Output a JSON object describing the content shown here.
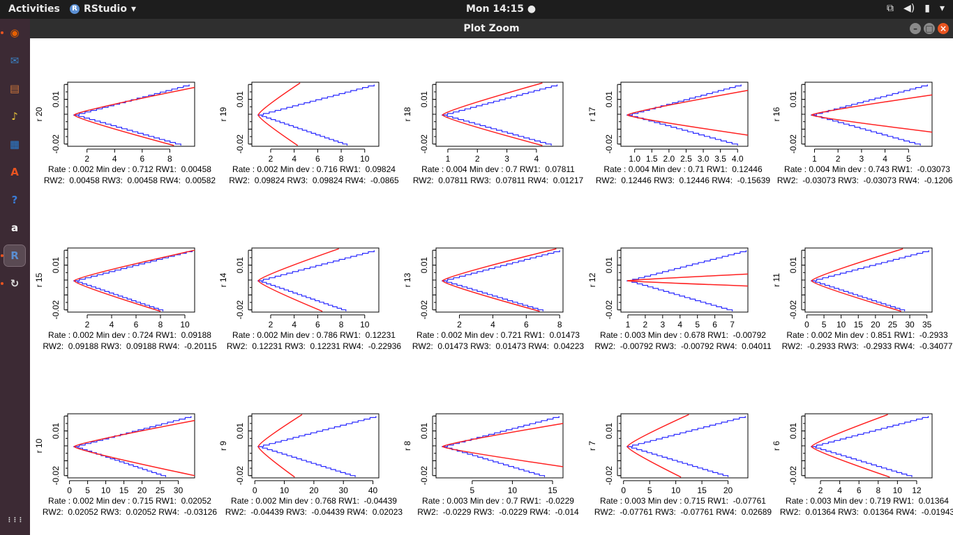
{
  "topbar": {
    "activities": "Activities",
    "app_name": "RStudio",
    "app_icon_letter": "R",
    "clock": "Mon 14:15"
  },
  "window": {
    "title": "Plot Zoom"
  },
  "dock": {
    "items": [
      {
        "name": "firefox",
        "icon": "firefox-icon",
        "glyph": "◉",
        "color": "#e66000"
      },
      {
        "name": "thunderbird",
        "icon": "mail-icon",
        "glyph": "✉",
        "color": "#3b82c4"
      },
      {
        "name": "files",
        "icon": "files-icon",
        "glyph": "▤",
        "color": "#c9743a"
      },
      {
        "name": "rhythmbox",
        "icon": "music-icon",
        "glyph": "♪",
        "color": "#e8c43a"
      },
      {
        "name": "libreoffice-writer",
        "icon": "document-icon",
        "glyph": "▦",
        "color": "#2a7dd1"
      },
      {
        "name": "software",
        "icon": "software-bag-icon",
        "glyph": "A",
        "color": "#e95420"
      },
      {
        "name": "help",
        "icon": "help-icon",
        "glyph": "?",
        "color": "#3a7bd5"
      },
      {
        "name": "amazon",
        "icon": "amazon-icon",
        "glyph": "a",
        "color": "#ffffff"
      },
      {
        "name": "rstudio",
        "icon": "rstudio-icon",
        "glyph": "R",
        "color": "#5b8fd3"
      },
      {
        "name": "updater",
        "icon": "updates-icon",
        "glyph": "↻",
        "color": "#dddddd"
      },
      {
        "name": "show-apps",
        "icon": "grid-icon",
        "glyph": "⋮⋮⋮",
        "color": "#dddddd"
      }
    ]
  },
  "colors": {
    "observed": "#2b2bff",
    "fitted": "#ff2020"
  },
  "chart_data": [
    {
      "type": "line",
      "ylabel": "r 20",
      "xticks": [
        "2",
        "4",
        "6",
        "8"
      ],
      "xrange": [
        0.6,
        9.8
      ],
      "caption1": "Rate : 0.002 Min dev : 0.712 RW1:  0.00458",
      "caption2": "RW2:  0.00458 RW3:  0.00458 RW4:  0.00582",
      "steps": 20,
      "blue": {
        "top_end": [
          9.4,
          0.02
        ],
        "bottom_end": [
          8.8,
          -0.021
        ]
      },
      "red": {
        "top_end": [
          9.8,
          0.018
        ],
        "bottom_end": [
          8.3,
          -0.021
        ]
      }
    },
    {
      "type": "line",
      "ylabel": "r 19",
      "xticks": [
        "2",
        "4",
        "6",
        "8",
        "10"
      ],
      "xrange": [
        0.4,
        11.2
      ],
      "caption1": "Rate : 0.002 Min dev : 0.716 RW1:  0.09824",
      "caption2": "RW2:  0.09824 RW3:  0.09824 RW4:  -0.0865",
      "steps": 20,
      "blue": {
        "top_end": [
          10.8,
          0.02
        ],
        "bottom_end": [
          8.5,
          -0.021
        ]
      },
      "red": {
        "top_end": [
          4.5,
          0.021
        ],
        "bottom_end": [
          4.3,
          -0.021
        ]
      }
    },
    {
      "type": "line",
      "ylabel": "r 18",
      "xticks": [
        "1",
        "2",
        "3",
        "4"
      ],
      "xrange": [
        0.6,
        4.9
      ],
      "caption1": "Rate : 0.004 Min dev : 0.7 RW1:  0.07811",
      "caption2": "RW2:  0.07811 RW3:  0.07811 RW4:  0.01217",
      "steps": 20,
      "blue": {
        "top_end": [
          4.7,
          0.02
        ],
        "bottom_end": [
          4.5,
          -0.021
        ]
      },
      "red": {
        "top_end": [
          4.2,
          0.021
        ],
        "bottom_end": [
          4.2,
          -0.021
        ]
      }
    },
    {
      "type": "line",
      "ylabel": "r 17",
      "xticks": [
        "1.0",
        "1.5",
        "2.0",
        "2.5",
        "3.0",
        "3.5",
        "4.0"
      ],
      "xrange": [
        0.6,
        4.3
      ],
      "caption1": "Rate : 0.004 Min dev : 0.71 RW1:  0.12446",
      "caption2": "RW2:  0.12446 RW3:  0.12446 RW4:  -0.15639",
      "steps": 20,
      "blue": {
        "top_end": [
          4.1,
          0.02
        ],
        "bottom_end": [
          4.0,
          -0.021
        ]
      },
      "red": {
        "top_end": [
          4.3,
          0.016
        ],
        "bottom_end": [
          4.3,
          -0.014
        ]
      }
    },
    {
      "type": "line",
      "ylabel": "r 16",
      "xticks": [
        "1",
        "2",
        "3",
        "4",
        "5"
      ],
      "xrange": [
        0.6,
        6.0
      ],
      "caption1": "Rate : 0.004 Min dev : 0.743 RW1:  -0.03073",
      "caption2": "RW2:  -0.03073 RW3:  -0.03073 RW4:  -0.12067",
      "steps": 20,
      "blue": {
        "top_end": [
          5.8,
          0.02
        ],
        "bottom_end": [
          5.5,
          -0.021
        ]
      },
      "red": {
        "top_end": [
          6.0,
          0.013
        ],
        "bottom_end": [
          6.0,
          -0.012
        ]
      }
    },
    {
      "type": "line",
      "ylabel": "r 15",
      "xticks": [
        "2",
        "4",
        "6",
        "8",
        "10"
      ],
      "xrange": [
        0.4,
        10.8
      ],
      "caption1": "Rate : 0.002 Min dev : 0.724 RW1:  0.09188",
      "caption2": "RW2:  0.09188 RW3:  0.09188 RW4:  -0.20115",
      "steps": 20,
      "blue": {
        "top_end": [
          10.6,
          0.02
        ],
        "bottom_end": [
          8.2,
          -0.021
        ]
      },
      "red": {
        "top_end": [
          10.8,
          0.02
        ],
        "bottom_end": [
          8.0,
          -0.021
        ]
      }
    },
    {
      "type": "line",
      "ylabel": "r 14",
      "xticks": [
        "2",
        "4",
        "6",
        "8",
        "10"
      ],
      "xrange": [
        0.4,
        11.2
      ],
      "caption1": "Rate : 0.002 Min dev : 0.786 RW1:  0.12231",
      "caption2": "RW2:  0.12231 RW3:  0.12231 RW4:  -0.22936",
      "steps": 20,
      "blue": {
        "top_end": [
          10.8,
          0.02
        ],
        "bottom_end": [
          8.4,
          -0.021
        ]
      },
      "red": {
        "top_end": [
          7.8,
          0.021
        ],
        "bottom_end": [
          6.4,
          -0.021
        ]
      }
    },
    {
      "type": "line",
      "ylabel": "r 13",
      "xticks": [
        "2",
        "4",
        "6",
        "8"
      ],
      "xrange": [
        0.6,
        8.2
      ],
      "caption1": "Rate : 0.002 Min dev : 0.721 RW1:  0.01473",
      "caption2": "RW2:  0.01473 RW3:  0.01473 RW4:  0.04223",
      "steps": 20,
      "blue": {
        "top_end": [
          8.0,
          0.02
        ],
        "bottom_end": [
          7.0,
          -0.021
        ]
      },
      "red": {
        "top_end": [
          7.8,
          0.021
        ],
        "bottom_end": [
          6.8,
          -0.021
        ]
      }
    },
    {
      "type": "line",
      "ylabel": "r 12",
      "xticks": [
        "1",
        "2",
        "3",
        "4",
        "5",
        "6",
        "7"
      ],
      "xrange": [
        0.6,
        7.9
      ],
      "caption1": "Rate : 0.003 Min dev : 0.678 RW1:  -0.00792",
      "caption2": "RW2:  -0.00792 RW3:  -0.00792 RW4:  0.04011",
      "steps": 20,
      "blue": {
        "top_end": [
          7.8,
          0.02
        ],
        "bottom_end": [
          7.0,
          -0.021
        ]
      },
      "red": {
        "top_end": [
          7.9,
          0.004
        ],
        "bottom_end": [
          7.9,
          -0.004
        ]
      }
    },
    {
      "type": "line",
      "ylabel": "r 11",
      "xticks": [
        "0",
        "5",
        "10",
        "15",
        "20",
        "25",
        "30",
        "35"
      ],
      "xrange": [
        -0.5,
        36.5
      ],
      "caption1": "Rate : 0.002 Min dev : 0.851 RW1:  -0.2933",
      "caption2": "RW2:  -0.2933 RW3:  -0.2933 RW4:  -0.34077",
      "steps": 20,
      "blue": {
        "top_end": [
          35.5,
          0.02
        ],
        "bottom_end": [
          28.5,
          -0.021
        ]
      },
      "red": {
        "top_end": [
          28.0,
          0.021
        ],
        "bottom_end": [
          27.5,
          -0.021
        ]
      }
    },
    {
      "type": "line",
      "ylabel": "r 10",
      "xticks": [
        "0",
        "5",
        "10",
        "15",
        "20",
        "25",
        "30"
      ],
      "xrange": [
        -0.5,
        34.5
      ],
      "caption1": "Rate : 0.002 Min dev : 0.715 RW1:  0.02052",
      "caption2": "RW2:  0.02052 RW3:  0.02052 RW4:  -0.03126",
      "steps": 20,
      "blue": {
        "top_end": [
          33.5,
          0.02
        ],
        "bottom_end": [
          26.5,
          -0.021
        ]
      },
      "red": {
        "top_end": [
          34.5,
          0.017
        ],
        "bottom_end": [
          34.5,
          -0.02
        ]
      }
    },
    {
      "type": "line",
      "ylabel": "r 9",
      "xticks": [
        "0",
        "10",
        "20",
        "30",
        "40"
      ],
      "xrange": [
        -1,
        42
      ],
      "caption1": "Rate : 0.002 Min dev : 0.768 RW1:  -0.04439",
      "caption2": "RW2:  -0.04439 RW3:  -0.04439 RW4:  0.02023",
      "steps": 20,
      "blue": {
        "top_end": [
          41.0,
          0.02
        ],
        "bottom_end": [
          34.0,
          -0.021
        ]
      },
      "red": {
        "top_end": [
          16.0,
          0.021
        ],
        "bottom_end": [
          13.5,
          -0.021
        ]
      }
    },
    {
      "type": "line",
      "ylabel": "r 8",
      "xticks": [
        "5",
        "10",
        "15"
      ],
      "xrange": [
        0.5,
        16.3
      ],
      "caption1": "Rate : 0.003 Min dev : 0.7 RW1:  -0.0229",
      "caption2": "RW2:  -0.0229 RW3:  -0.0229 RW4:  -0.014",
      "steps": 20,
      "blue": {
        "top_end": [
          15.8,
          0.02
        ],
        "bottom_end": [
          14.0,
          -0.021
        ]
      },
      "red": {
        "top_end": [
          16.3,
          0.015
        ],
        "bottom_end": [
          16.3,
          -0.014
        ]
      }
    },
    {
      "type": "line",
      "ylabel": "r 7",
      "xticks": [
        "0",
        "5",
        "10",
        "15",
        "20"
      ],
      "xrange": [
        -0.5,
        23.8
      ],
      "caption1": "Rate : 0.003 Min dev : 0.715 RW1:  -0.07761",
      "caption2": "RW2:  -0.07761 RW3:  -0.07761 RW4:  0.02689",
      "steps": 20,
      "blue": {
        "top_end": [
          23.3,
          0.02
        ],
        "bottom_end": [
          20.0,
          -0.021
        ]
      },
      "red": {
        "top_end": [
          12.5,
          0.021
        ],
        "bottom_end": [
          11.0,
          -0.021
        ]
      }
    },
    {
      "type": "line",
      "ylabel": "r 6",
      "xticks": [
        "2",
        "4",
        "6",
        "8",
        "10",
        "12"
      ],
      "xrange": [
        0.4,
        13.6
      ],
      "caption1": "Rate : 0.003 Min dev : 0.719 RW1:  0.01364",
      "caption2": "RW2:  0.01364 RW3:  0.01364 RW4:  -0.01943",
      "steps": 20,
      "blue": {
        "top_end": [
          13.2,
          0.02
        ],
        "bottom_end": [
          11.5,
          -0.021
        ]
      },
      "red": {
        "top_end": [
          9.0,
          0.021
        ],
        "bottom_end": [
          9.2,
          -0.021
        ]
      }
    }
  ]
}
